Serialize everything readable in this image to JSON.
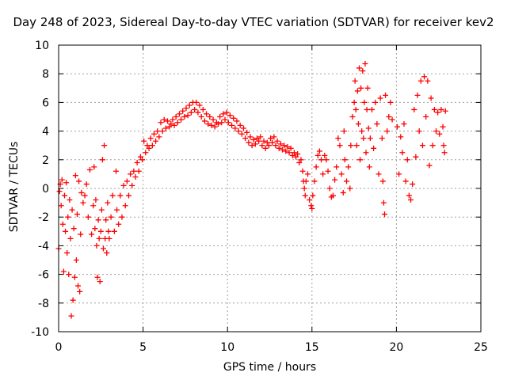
{
  "chart_data": {
    "type": "scatter",
    "title": "Day 248 of 2023, Sidereal Day-to-day VTEC variation (SDTVAR) for receiver kev2",
    "xlabel": "GPS time / hours",
    "ylabel": "SDTVAR / TECUs",
    "xlim": [
      0,
      25
    ],
    "ylim": [
      -10,
      10
    ],
    "xticks": [
      "0",
      "5",
      "10",
      "15",
      "20",
      "25"
    ],
    "yticks": [
      "-10",
      "-8",
      "-6",
      "-4",
      "-2",
      "0",
      "2",
      "4",
      "6",
      "8",
      "10"
    ],
    "grid": true,
    "marker": "+",
    "color": "#ff0000",
    "series": [
      {
        "name": "SDTVAR",
        "points": [
          [
            0.0,
            -4.2
          ],
          [
            0.05,
            -0.2
          ],
          [
            0.1,
            0.3
          ],
          [
            0.15,
            -1.2
          ],
          [
            0.2,
            0.6
          ],
          [
            0.25,
            -2.5
          ],
          [
            0.3,
            -5.8
          ],
          [
            0.35,
            -0.5
          ],
          [
            0.4,
            -3.0
          ],
          [
            0.45,
            0.4
          ],
          [
            0.5,
            -4.5
          ],
          [
            0.55,
            -2.0
          ],
          [
            0.6,
            -6.0
          ],
          [
            0.65,
            -0.8
          ],
          [
            0.7,
            -3.5
          ],
          [
            0.75,
            -8.9
          ],
          [
            0.8,
            -1.5
          ],
          [
            0.85,
            -7.8
          ],
          [
            0.9,
            -2.8
          ],
          [
            0.95,
            -6.2
          ],
          [
            1.0,
            0.9
          ],
          [
            1.05,
            -5.0
          ],
          [
            1.1,
            -1.8
          ],
          [
            1.15,
            -6.8
          ],
          [
            1.2,
            0.5
          ],
          [
            1.25,
            -7.2
          ],
          [
            1.3,
            -3.2
          ],
          [
            1.35,
            -0.3
          ],
          [
            1.45,
            -1.0
          ],
          [
            1.55,
            -0.5
          ],
          [
            1.65,
            0.3
          ],
          [
            1.75,
            -2.0
          ],
          [
            1.85,
            1.3
          ],
          [
            1.95,
            -3.2
          ],
          [
            2.05,
            -1.2
          ],
          [
            2.1,
            1.5
          ],
          [
            2.15,
            -2.8
          ],
          [
            2.2,
            -0.8
          ],
          [
            2.25,
            -4.0
          ],
          [
            2.3,
            -6.2
          ],
          [
            2.35,
            -2.2
          ],
          [
            2.4,
            -3.5
          ],
          [
            2.45,
            -6.5
          ],
          [
            2.5,
            -3.0
          ],
          [
            2.55,
            -1.5
          ],
          [
            2.6,
            2.0
          ],
          [
            2.65,
            -4.2
          ],
          [
            2.7,
            3.0
          ],
          [
            2.75,
            -3.5
          ],
          [
            2.8,
            -2.2
          ],
          [
            2.85,
            -4.5
          ],
          [
            2.9,
            -1.0
          ],
          [
            2.95,
            -3.0
          ],
          [
            3.0,
            -3.5
          ],
          [
            3.1,
            -2.0
          ],
          [
            3.2,
            -0.5
          ],
          [
            3.3,
            -3.0
          ],
          [
            3.4,
            1.2
          ],
          [
            3.45,
            -1.5
          ],
          [
            3.55,
            -2.5
          ],
          [
            3.65,
            -0.5
          ],
          [
            3.75,
            -2.0
          ],
          [
            3.85,
            0.2
          ],
          [
            3.95,
            -1.2
          ],
          [
            4.05,
            0.5
          ],
          [
            4.15,
            -0.5
          ],
          [
            4.25,
            1.0
          ],
          [
            4.35,
            0.2
          ],
          [
            4.45,
            1.2
          ],
          [
            4.55,
            0.8
          ],
          [
            4.65,
            1.8
          ],
          [
            4.75,
            1.2
          ],
          [
            4.85,
            2.2
          ],
          [
            4.95,
            2.0
          ],
          [
            5.05,
            3.3
          ],
          [
            5.15,
            2.5
          ],
          [
            5.25,
            3.0
          ],
          [
            5.35,
            2.8
          ],
          [
            5.45,
            3.5
          ],
          [
            5.55,
            3.0
          ],
          [
            5.65,
            3.8
          ],
          [
            5.75,
            3.3
          ],
          [
            5.85,
            4.0
          ],
          [
            5.95,
            3.6
          ],
          [
            6.05,
            4.6
          ],
          [
            6.15,
            4.0
          ],
          [
            6.25,
            4.8
          ],
          [
            6.35,
            4.2
          ],
          [
            6.45,
            4.7
          ],
          [
            6.55,
            4.3
          ],
          [
            6.65,
            4.5
          ],
          [
            6.75,
            4.8
          ],
          [
            6.85,
            4.4
          ],
          [
            6.95,
            5.0
          ],
          [
            7.05,
            4.6
          ],
          [
            7.15,
            5.2
          ],
          [
            7.25,
            4.8
          ],
          [
            7.35,
            5.4
          ],
          [
            7.45,
            5.0
          ],
          [
            7.55,
            5.6
          ],
          [
            7.65,
            5.1
          ],
          [
            7.75,
            5.8
          ],
          [
            7.85,
            5.3
          ],
          [
            7.95,
            6.0
          ],
          [
            8.05,
            5.5
          ],
          [
            8.15,
            6.0
          ],
          [
            8.25,
            5.3
          ],
          [
            8.35,
            5.8
          ],
          [
            8.45,
            5.0
          ],
          [
            8.55,
            5.5
          ],
          [
            8.65,
            4.7
          ],
          [
            8.75,
            5.2
          ],
          [
            8.85,
            4.5
          ],
          [
            8.95,
            5.0
          ],
          [
            9.05,
            4.4
          ],
          [
            9.15,
            4.8
          ],
          [
            9.25,
            4.3
          ],
          [
            9.35,
            4.6
          ],
          [
            9.45,
            4.5
          ],
          [
            9.55,
            5.0
          ],
          [
            9.65,
            4.6
          ],
          [
            9.75,
            5.2
          ],
          [
            9.85,
            4.8
          ],
          [
            9.95,
            5.3
          ],
          [
            10.05,
            4.6
          ],
          [
            10.15,
            5.1
          ],
          [
            10.25,
            4.4
          ],
          [
            10.35,
            4.9
          ],
          [
            10.45,
            4.2
          ],
          [
            10.55,
            4.7
          ],
          [
            10.65,
            4.0
          ],
          [
            10.75,
            4.4
          ],
          [
            10.85,
            3.8
          ],
          [
            10.95,
            4.2
          ],
          [
            11.05,
            3.5
          ],
          [
            11.15,
            3.9
          ],
          [
            11.25,
            3.2
          ],
          [
            11.35,
            3.6
          ],
          [
            11.45,
            3.0
          ],
          [
            11.55,
            3.4
          ],
          [
            11.65,
            3.1
          ],
          [
            11.75,
            3.5
          ],
          [
            11.85,
            3.3
          ],
          [
            11.95,
            3.6
          ],
          [
            12.05,
            3.0
          ],
          [
            12.15,
            3.3
          ],
          [
            12.25,
            2.8
          ],
          [
            12.35,
            3.2
          ],
          [
            12.45,
            3.0
          ],
          [
            12.55,
            3.5
          ],
          [
            12.65,
            3.2
          ],
          [
            12.75,
            3.6
          ],
          [
            12.85,
            3.0
          ],
          [
            12.95,
            3.3
          ],
          [
            13.05,
            2.8
          ],
          [
            13.15,
            3.1
          ],
          [
            13.25,
            2.7
          ],
          [
            13.35,
            3.0
          ],
          [
            13.45,
            2.6
          ],
          [
            13.55,
            2.9
          ],
          [
            13.65,
            2.5
          ],
          [
            13.75,
            2.8
          ],
          [
            13.85,
            2.3
          ],
          [
            13.95,
            2.5
          ],
          [
            14.05,
            2.2
          ],
          [
            14.15,
            2.4
          ],
          [
            14.25,
            1.8
          ],
          [
            14.35,
            2.0
          ],
          [
            14.45,
            1.2
          ],
          [
            14.5,
            0.5
          ],
          [
            14.55,
            0.0
          ],
          [
            14.6,
            -0.5
          ],
          [
            14.65,
            0.5
          ],
          [
            14.75,
            1.0
          ],
          [
            14.85,
            -0.8
          ],
          [
            14.95,
            -1.2
          ],
          [
            15.0,
            -1.4
          ],
          [
            15.05,
            -0.5
          ],
          [
            15.15,
            0.5
          ],
          [
            15.25,
            1.5
          ],
          [
            15.35,
            2.3
          ],
          [
            15.45,
            2.6
          ],
          [
            15.55,
            2.0
          ],
          [
            15.65,
            1.0
          ],
          [
            15.75,
            2.3
          ],
          [
            15.85,
            2.0
          ],
          [
            15.95,
            1.2
          ],
          [
            16.05,
            0.0
          ],
          [
            16.15,
            -0.6
          ],
          [
            16.25,
            -0.5
          ],
          [
            16.35,
            0.6
          ],
          [
            16.45,
            1.5
          ],
          [
            16.55,
            3.5
          ],
          [
            16.65,
            3.0
          ],
          [
            16.75,
            1.0
          ],
          [
            16.85,
            -0.3
          ],
          [
            16.9,
            4.0
          ],
          [
            16.95,
            2.0
          ],
          [
            17.05,
            0.5
          ],
          [
            17.15,
            1.5
          ],
          [
            17.25,
            0.0
          ],
          [
            17.3,
            3.0
          ],
          [
            17.4,
            5.0
          ],
          [
            17.5,
            6.0
          ],
          [
            17.55,
            7.5
          ],
          [
            17.6,
            5.5
          ],
          [
            17.65,
            3.0
          ],
          [
            17.7,
            6.8
          ],
          [
            17.75,
            4.5
          ],
          [
            17.8,
            8.4
          ],
          [
            17.85,
            2.0
          ],
          [
            17.9,
            7.0
          ],
          [
            17.95,
            4.0
          ],
          [
            18.0,
            8.2
          ],
          [
            18.05,
            3.5
          ],
          [
            18.1,
            6.0
          ],
          [
            18.15,
            8.7
          ],
          [
            18.2,
            2.5
          ],
          [
            18.25,
            5.5
          ],
          [
            18.3,
            7.0
          ],
          [
            18.35,
            4.2
          ],
          [
            18.4,
            1.5
          ],
          [
            18.45,
            3.5
          ],
          [
            18.55,
            5.5
          ],
          [
            18.65,
            2.8
          ],
          [
            18.75,
            6.0
          ],
          [
            18.85,
            4.5
          ],
          [
            18.95,
            1.0
          ],
          [
            19.05,
            6.3
          ],
          [
            19.15,
            3.5
          ],
          [
            19.2,
            0.5
          ],
          [
            19.25,
            -1.0
          ],
          [
            19.3,
            -1.8
          ],
          [
            19.35,
            6.5
          ],
          [
            19.45,
            4.0
          ],
          [
            19.55,
            5.0
          ],
          [
            19.65,
            6.0
          ],
          [
            19.75,
            4.8
          ],
          [
            20.05,
            4.3
          ],
          [
            20.15,
            1.0
          ],
          [
            20.25,
            3.6
          ],
          [
            20.35,
            2.5
          ],
          [
            20.45,
            4.5
          ],
          [
            20.55,
            0.5
          ],
          [
            20.65,
            2.0
          ],
          [
            20.75,
            -0.5
          ],
          [
            20.85,
            -0.8
          ],
          [
            20.95,
            0.3
          ],
          [
            21.05,
            5.5
          ],
          [
            21.15,
            2.2
          ],
          [
            21.25,
            6.5
          ],
          [
            21.35,
            4.0
          ],
          [
            21.45,
            7.5
          ],
          [
            21.55,
            3.0
          ],
          [
            21.65,
            7.8
          ],
          [
            21.75,
            5.0
          ],
          [
            21.85,
            7.5
          ],
          [
            21.95,
            1.6
          ],
          [
            22.05,
            6.3
          ],
          [
            22.15,
            3.0
          ],
          [
            22.25,
            5.5
          ],
          [
            22.35,
            4.0
          ],
          [
            22.45,
            5.3
          ],
          [
            22.55,
            3.8
          ],
          [
            22.65,
            5.5
          ],
          [
            22.75,
            4.3
          ],
          [
            22.8,
            3.0
          ],
          [
            22.85,
            2.5
          ],
          [
            22.9,
            5.4
          ]
        ]
      }
    ]
  }
}
